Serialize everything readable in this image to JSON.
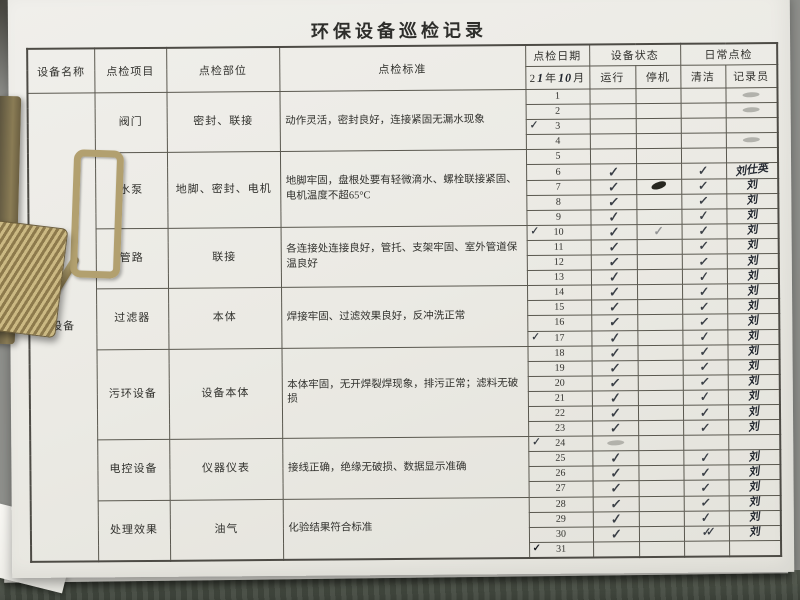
{
  "page": {
    "title": "环保设备巡检记录"
  },
  "table": {
    "headers": {
      "equipment_name": "设备名称",
      "inspect_item": "点检项目",
      "inspect_part": "点检部位",
      "inspect_standard": "点检标准",
      "inspect_date": "点检日期",
      "date": {
        "prefix": "2",
        "year_handwritten": "1",
        "year_suffix": "年",
        "month_handwritten": "10",
        "month_suffix": "月"
      },
      "equipment_status": "设备状态",
      "daily_inspect": "日常点检",
      "run": "运行",
      "stop": "停机",
      "clean": "清洁",
      "recorder": "记录员"
    },
    "device_group_label": "设备",
    "groups": [
      {
        "item": "阀门",
        "part": "密封、联接",
        "standard": "动作灵活，密封良好，连接紧固无漏水现象",
        "rows": 4
      },
      {
        "item": "水泵",
        "part": "地脚、密封、电机",
        "standard": "地脚牢固，盘根处要有轻微滴水、螺栓联接紧固、电机温度不超65°C",
        "rows": 5
      },
      {
        "item": "管路",
        "part": "联接",
        "standard": "各连接处连接良好，管托、支架牢固、室外管道保温良好",
        "rows": 4
      },
      {
        "item": "过滤器",
        "part": "本体",
        "standard": "焊接牢固、过滤效果良好，反冲洗正常",
        "rows": 4
      },
      {
        "item": "污环设备",
        "part": "设备本体",
        "standard": "本体牢固，无开焊裂焊现象，排污正常；滤料无破损",
        "rows": 6
      },
      {
        "item": "电控设备",
        "part": "仪器仪表",
        "standard": "接线正确，绝缘无破损、数据显示准确",
        "rows": 4
      },
      {
        "item": "处理效果",
        "part": "油气",
        "standard": "化验结果符合标准",
        "rows": 4
      }
    ],
    "days": [
      {
        "day": "1",
        "recorder": "smudge"
      },
      {
        "day": "2",
        "recorder": "smudge"
      },
      {
        "day": "3",
        "date_check": "check"
      },
      {
        "day": "4",
        "recorder": "smudge"
      },
      {
        "day": "5"
      },
      {
        "day": "6",
        "run": "check",
        "clean": "check",
        "signature": "刘仕英"
      },
      {
        "day": "7",
        "run": "check",
        "stop": "scribble",
        "clean": "check",
        "signature": "刘"
      },
      {
        "day": "8",
        "run": "check",
        "clean": "check",
        "signature": "刘"
      },
      {
        "day": "9",
        "run": "check",
        "clean": "check",
        "signature": "刘"
      },
      {
        "day": "10",
        "date_check": "check",
        "run": "check",
        "stop": "check-light",
        "clean": "check",
        "signature": "刘"
      },
      {
        "day": "11",
        "run": "check",
        "clean": "check",
        "signature": "刘"
      },
      {
        "day": "12",
        "run": "check",
        "clean": "check",
        "signature": "刘"
      },
      {
        "day": "13",
        "run": "check",
        "clean": "check",
        "signature": "刘"
      },
      {
        "day": "14",
        "run": "check",
        "clean": "check",
        "signature": "刘"
      },
      {
        "day": "15",
        "run": "check",
        "clean": "check",
        "signature": "刘"
      },
      {
        "day": "16",
        "run": "check",
        "clean": "check",
        "signature": "刘"
      },
      {
        "day": "17",
        "date_check": "check",
        "run": "check",
        "clean": "check",
        "signature": "刘"
      },
      {
        "day": "18",
        "run": "check",
        "clean": "check",
        "signature": "刘"
      },
      {
        "day": "19",
        "run": "check",
        "clean": "check",
        "signature": "刘"
      },
      {
        "day": "20",
        "run": "check",
        "clean": "check",
        "signature": "刘"
      },
      {
        "day": "21",
        "run": "check",
        "clean": "check",
        "signature": "刘"
      },
      {
        "day": "22",
        "run": "check",
        "clean": "check",
        "signature": "刘"
      },
      {
        "day": "23",
        "run": "check",
        "clean": "check",
        "signature": "刘"
      },
      {
        "day": "24",
        "date_check": "check",
        "run": "smudge"
      },
      {
        "day": "25",
        "run": "check",
        "clean": "check",
        "signature": "刘"
      },
      {
        "day": "26",
        "run": "check",
        "clean": "check",
        "signature": "刘"
      },
      {
        "day": "27",
        "run": "check",
        "clean": "check",
        "signature": "刘"
      },
      {
        "day": "28",
        "run": "check",
        "clean": "check",
        "signature": "刘"
      },
      {
        "day": "29",
        "run": "check",
        "clean": "check",
        "signature": "刘"
      },
      {
        "day": "30",
        "run": "check",
        "clean": "check2",
        "signature": "刘"
      },
      {
        "day": "31",
        "date_check": "bold"
      }
    ]
  }
}
